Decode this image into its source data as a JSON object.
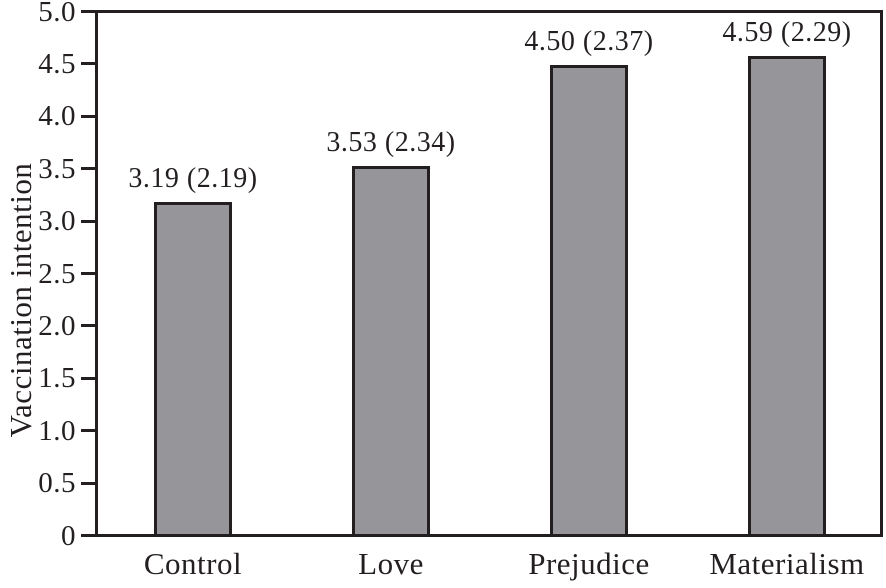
{
  "chart_data": {
    "type": "bar",
    "title": "",
    "xlabel": "",
    "ylabel": "Vaccination intention",
    "categories": [
      "Control",
      "Love",
      "Prejudice",
      "Materialism"
    ],
    "values": [
      3.19,
      3.53,
      4.5,
      4.59
    ],
    "sd_values": [
      2.19,
      2.34,
      2.37,
      2.29
    ],
    "bar_labels": [
      "3.19 (2.19)",
      "3.53 (2.34)",
      "4.50 (2.37)",
      "4.59 (2.29)"
    ],
    "ylim": [
      0,
      5
    ],
    "ytick_step": 0.5,
    "ytick_labels": [
      "0",
      "0.5",
      "1.0",
      "1.5",
      "2.0",
      "2.5",
      "3.0",
      "3.5",
      "4.0",
      "4.5",
      "5.0"
    ],
    "grid": false,
    "legend": null,
    "colors": {
      "bar_fill": "#95959a",
      "bar_border": "#231f20",
      "axis": "#231f20",
      "text": "#231f20",
      "background": "#ffffff"
    }
  }
}
